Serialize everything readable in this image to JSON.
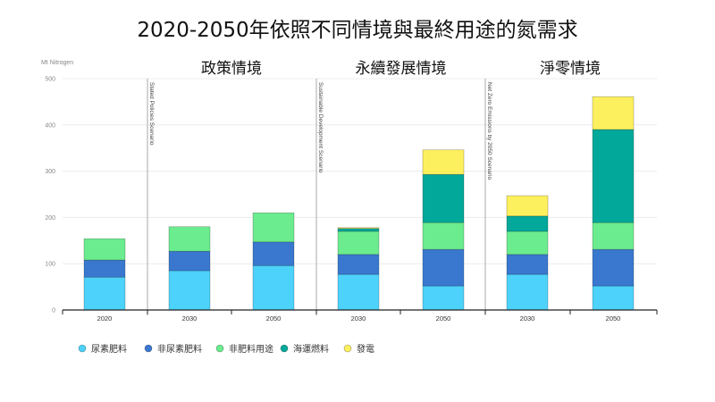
{
  "chart_data": {
    "type": "bar",
    "stacked": true,
    "title": "2020-2050年依照不同情境與最終用途的氮需求",
    "ylabel": "Mt Nitrogen",
    "ylim": [
      0,
      500
    ],
    "yticks": [
      0,
      100,
      200,
      300,
      400,
      500
    ],
    "grid": true,
    "legend_placement": "bottom-left",
    "groups": [
      {
        "label": "",
        "vertical_label": "",
        "categories": [
          "2020"
        ]
      },
      {
        "label": "政策情境",
        "vertical_label": "Stated Policies Scenario",
        "categories": [
          "2030",
          "2050"
        ]
      },
      {
        "label": "永續發展情境",
        "vertical_label": "Sustainable Development Scenario",
        "categories": [
          "2030",
          "2050"
        ]
      },
      {
        "label": "淨零情境",
        "vertical_label": "Net Zero Emissions by 2050 Scenario",
        "categories": [
          "2030",
          "2050"
        ]
      }
    ],
    "categories": [
      "2020",
      "2030",
      "2050",
      "2030",
      "2050",
      "2030",
      "2050"
    ],
    "series": [
      {
        "name": "尿素肥料",
        "color": "#4dd2fb",
        "values": [
          71,
          85,
          96,
          77,
          52,
          77,
          52
        ]
      },
      {
        "name": "非尿素肥料",
        "color": "#3a78cf",
        "values": [
          37,
          42,
          51,
          43,
          79,
          43,
          79
        ]
      },
      {
        "name": "非肥料用途",
        "color": "#6bec8e",
        "values": [
          46,
          53,
          63,
          50,
          58,
          50,
          58
        ]
      },
      {
        "name": "海運燃料",
        "color": "#02a99a",
        "values": [
          0,
          0,
          0,
          6,
          104,
          33,
          201
        ]
      },
      {
        "name": "發電",
        "color": "#fdf05e",
        "values": [
          0,
          0,
          0,
          2,
          53,
          44,
          71
        ]
      }
    ]
  }
}
